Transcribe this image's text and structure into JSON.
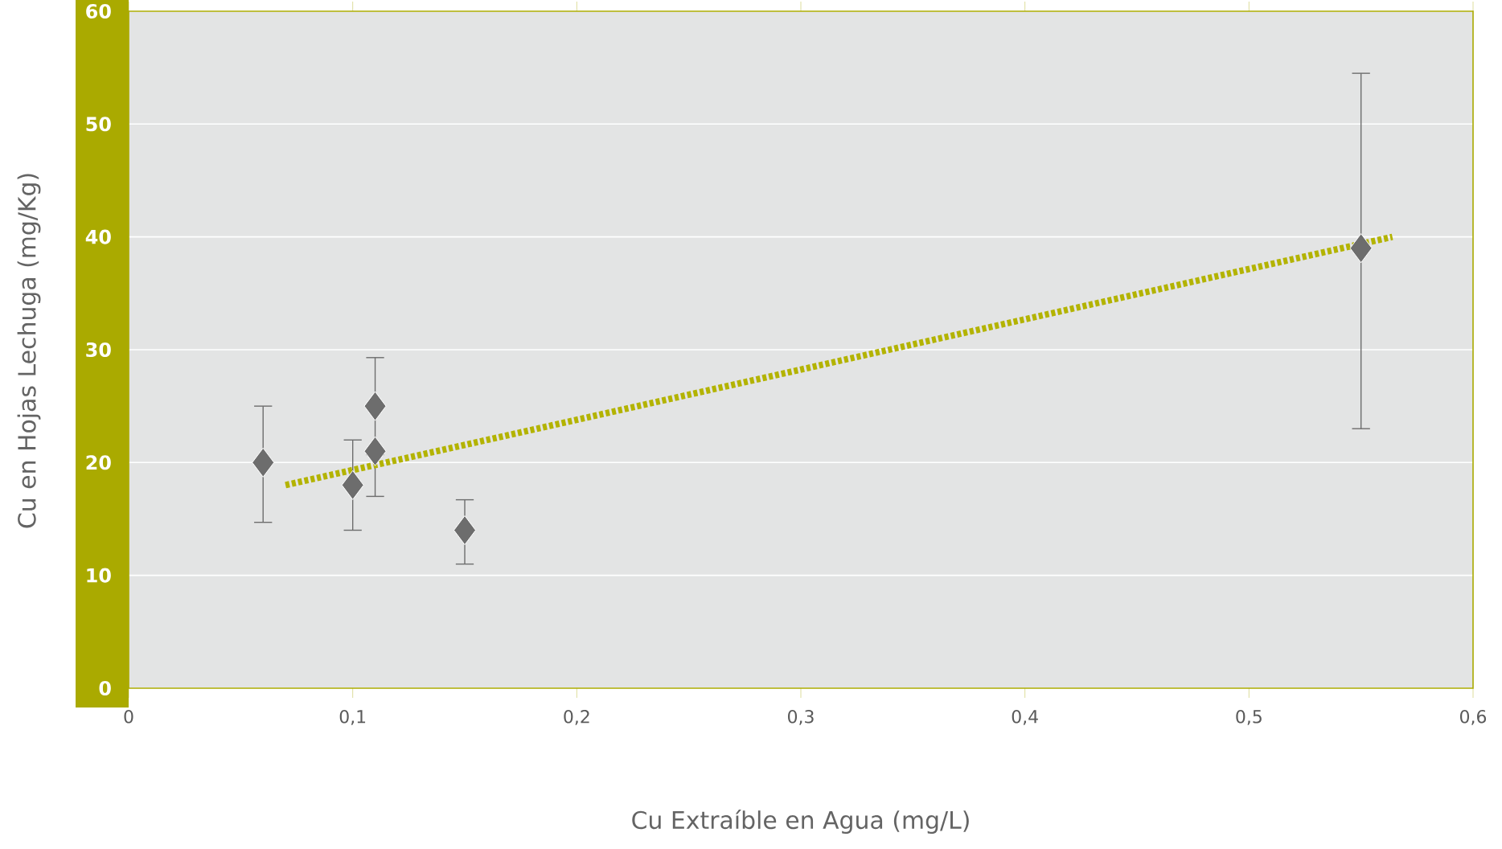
{
  "chart_data": {
    "type": "scatter",
    "xlabel": "Cu Extraíble en Agua (mg/L)",
    "ylabel": "Cu en Hojas Lechuga (mg/Kg)",
    "xlim": [
      0,
      0.6
    ],
    "ylim": [
      0,
      60
    ],
    "xticks": [
      0,
      {
        "value": 0.1,
        "label": "0,1"
      },
      {
        "value": 0.2,
        "label": "0,2"
      },
      {
        "value": 0.3,
        "label": "0,3"
      },
      {
        "value": 0.4,
        "label": "0,4"
      },
      {
        "value": 0.5,
        "label": "0,5"
      },
      {
        "value": 0.6,
        "label": "0,6"
      }
    ],
    "yticks": [
      0,
      10,
      20,
      30,
      40,
      50,
      60
    ],
    "grid": "y",
    "series": [
      {
        "color": "#6d6d6d",
        "marker": "diamond",
        "x": [
          0.06,
          0.1,
          0.11,
          0.11,
          0.15,
          0.55
        ],
        "values": [
          20,
          18,
          25,
          21,
          14,
          39
        ],
        "errors": [
          [
            14.7,
            25
          ],
          [
            14,
            22
          ],
          [
            20.7,
            29.3
          ],
          [
            17,
            21
          ],
          [
            11,
            16.7
          ],
          [
            23,
            54.5
          ]
        ]
      },
      {
        "type": "line",
        "color": "#b3b300",
        "line_style": "dotted",
        "x": [
          0.07,
          0.564
        ],
        "values": [
          18,
          40
        ]
      }
    ]
  }
}
